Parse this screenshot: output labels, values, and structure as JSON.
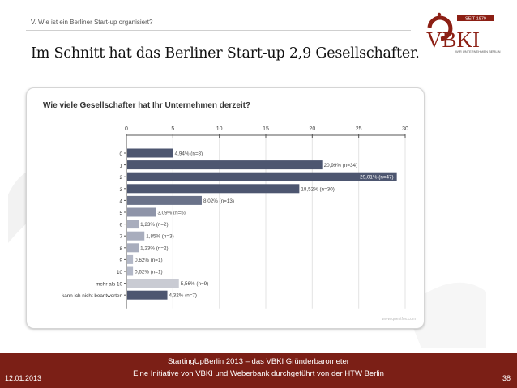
{
  "slide": {
    "breadcrumb": "V. Wie ist ein Berliner Start-up organisiert?",
    "headline": "Im Schnitt hat das Berliner Start-up 2,9 Gesellschafter."
  },
  "logo": {
    "since": "SEIT 1879",
    "name": "VBKI",
    "tagline": "WIR UNTERNEHMEN BERLIN",
    "color": "#8c1f14"
  },
  "chart": {
    "title": "Wie viele Gesellschafter hat Ihr Unternehmen derzeit?",
    "credit": "www.questfox.com"
  },
  "chart_data": {
    "type": "bar",
    "orientation": "horizontal",
    "title": "Wie viele Gesellschafter hat Ihr Unternehmen derzeit?",
    "xlim": [
      0,
      30
    ],
    "xticks": [
      0,
      5,
      10,
      15,
      20,
      25,
      30
    ],
    "categories": [
      "0",
      "1",
      "2",
      "3",
      "4",
      "5",
      "6",
      "7",
      "8",
      "9",
      "10",
      "mehr als 10",
      "kann ich nicht beantworten"
    ],
    "values": [
      4.94,
      20.99,
      29.01,
      18.52,
      8.02,
      3.09,
      1.23,
      1.85,
      1.23,
      0.62,
      0.62,
      5.56,
      4.32
    ],
    "labels": [
      "4,94% (n=8)",
      "20,99% (n=34)",
      "29,01% (n=47)",
      "18,52% (n=30)",
      "8,02% (n=13)",
      "3,09% (n=5)",
      "1,23% (n=2)",
      "1,85% (n=3)",
      "1,23% (n=2)",
      "0,62% (n=1)",
      "0,62% (n=1)",
      "5,56% (n=9)",
      "4,32% (n=7)"
    ],
    "colors": [
      "#4d5670",
      "#4d5670",
      "#4d5670",
      "#4d5670",
      "#6a7289",
      "#8e94a8",
      "#a8adbd",
      "#a8adbd",
      "#a8adbd",
      "#b3b8c7",
      "#b3b8c7",
      "#c9cbd3",
      "#4d5670"
    ],
    "grid": true
  },
  "footer": {
    "line1": "StartingUpBerlin 2013 – das VBKI Gründerbarometer",
    "line2": "Eine Initiative von VBKI und Weberbank durchgeführt von der HTW Berlin",
    "date": "12.01.2013",
    "page": "38",
    "background": "#7b1f16"
  }
}
